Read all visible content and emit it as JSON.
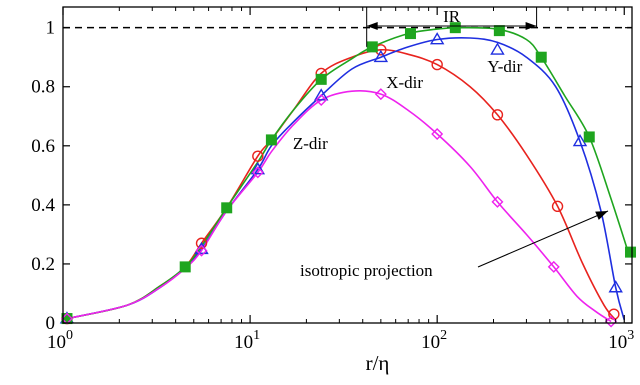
{
  "chart_data": {
    "type": "line",
    "title": "",
    "xlabel": "r/η",
    "ylabel": "",
    "xscale": "log",
    "xlim": [
      1,
      1100
    ],
    "ylim": [
      0,
      1.07
    ],
    "grid": false,
    "x_tick_labels": [
      {
        "value": 1,
        "base": "10",
        "exp": "0"
      },
      {
        "value": 10,
        "base": "10",
        "exp": "1"
      },
      {
        "value": 100,
        "base": "10",
        "exp": "2"
      },
      {
        "value": 1000,
        "base": "10",
        "exp": "3"
      }
    ],
    "y_ticks": [
      0,
      0.2,
      0.4,
      0.6,
      0.8,
      1
    ],
    "y_tick_labels": [
      "0",
      "0.2",
      "0.4",
      "0.6",
      "0.8",
      "1"
    ],
    "reference_line": {
      "y": 1,
      "style": "dashed",
      "color": "#000000"
    },
    "series": [
      {
        "color": "#e8231e",
        "marker": "circle",
        "curve": [
          [
            1.05,
            0.015
          ],
          [
            2.2,
            0.06
          ],
          [
            3.3,
            0.125
          ],
          [
            4.5,
            0.19
          ],
          [
            5.5,
            0.27
          ],
          [
            7.5,
            0.39
          ],
          [
            11,
            0.565
          ],
          [
            13,
            0.62
          ],
          [
            17,
            0.72
          ],
          [
            24,
            0.845
          ],
          [
            35,
            0.9
          ],
          [
            50,
            0.925
          ],
          [
            70,
            0.91
          ],
          [
            100,
            0.875
          ],
          [
            150,
            0.8
          ],
          [
            210,
            0.705
          ],
          [
            300,
            0.57
          ],
          [
            440,
            0.395
          ],
          [
            600,
            0.2
          ],
          [
            780,
            0.06
          ],
          [
            900,
            0.01
          ]
        ],
        "points": [
          [
            1.05,
            0.015
          ],
          [
            5.5,
            0.27
          ],
          [
            11,
            0.565
          ],
          [
            24,
            0.845
          ],
          [
            50,
            0.925
          ],
          [
            100,
            0.875
          ],
          [
            210,
            0.705
          ],
          [
            440,
            0.395
          ],
          [
            880,
            0.03
          ]
        ]
      },
      {
        "color": "#1f2fe0",
        "marker": "triangle",
        "curve": [
          [
            1.05,
            0.015
          ],
          [
            2.2,
            0.06
          ],
          [
            3.3,
            0.12
          ],
          [
            4.5,
            0.19
          ],
          [
            5.5,
            0.25
          ],
          [
            7.5,
            0.38
          ],
          [
            11,
            0.52
          ],
          [
            13,
            0.6
          ],
          [
            17,
            0.68
          ],
          [
            24,
            0.77
          ],
          [
            35,
            0.86
          ],
          [
            50,
            0.9
          ],
          [
            70,
            0.935
          ],
          [
            100,
            0.96
          ],
          [
            150,
            0.965
          ],
          [
            210,
            0.95
          ],
          [
            300,
            0.9
          ],
          [
            430,
            0.8
          ],
          [
            580,
            0.615
          ],
          [
            750,
            0.38
          ],
          [
            900,
            0.12
          ],
          [
            1000,
            0.01
          ]
        ],
        "points": [
          [
            1.05,
            0.015
          ],
          [
            5.5,
            0.25
          ],
          [
            11,
            0.52
          ],
          [
            24,
            0.77
          ],
          [
            50,
            0.9
          ],
          [
            100,
            0.96
          ],
          [
            210,
            0.925
          ],
          [
            580,
            0.615
          ],
          [
            900,
            0.12
          ]
        ]
      },
      {
        "color": "#1fa51f",
        "marker": "square",
        "curve": [
          [
            1.05,
            0.015
          ],
          [
            2.2,
            0.06
          ],
          [
            3.3,
            0.125
          ],
          [
            4.5,
            0.19
          ],
          [
            5.5,
            0.26
          ],
          [
            7.5,
            0.39
          ],
          [
            11,
            0.545
          ],
          [
            13,
            0.62
          ],
          [
            17,
            0.72
          ],
          [
            24,
            0.825
          ],
          [
            35,
            0.895
          ],
          [
            45,
            0.935
          ],
          [
            70,
            0.98
          ],
          [
            100,
            0.995
          ],
          [
            130,
            1.0
          ],
          [
            210,
            0.995
          ],
          [
            300,
            0.96
          ],
          [
            360,
            0.9
          ],
          [
            480,
            0.77
          ],
          [
            650,
            0.63
          ],
          [
            850,
            0.42
          ],
          [
            1050,
            0.24
          ]
        ],
        "points": [
          [
            1.05,
            0.015
          ],
          [
            4.5,
            0.19
          ],
          [
            7.5,
            0.39
          ],
          [
            13,
            0.62
          ],
          [
            24,
            0.825
          ],
          [
            45,
            0.935
          ],
          [
            72,
            0.98
          ],
          [
            125,
            1.0
          ],
          [
            215,
            0.99
          ],
          [
            360,
            0.9
          ],
          [
            650,
            0.63
          ],
          [
            1080,
            0.24
          ]
        ]
      },
      {
        "color": "#ee22ee",
        "marker": "diamond",
        "curve": [
          [
            1.05,
            0.015
          ],
          [
            2.2,
            0.06
          ],
          [
            3.3,
            0.12
          ],
          [
            4.5,
            0.185
          ],
          [
            5.5,
            0.245
          ],
          [
            7.5,
            0.38
          ],
          [
            11,
            0.51
          ],
          [
            13,
            0.58
          ],
          [
            17,
            0.67
          ],
          [
            24,
            0.755
          ],
          [
            35,
            0.785
          ],
          [
            50,
            0.775
          ],
          [
            70,
            0.72
          ],
          [
            100,
            0.64
          ],
          [
            150,
            0.53
          ],
          [
            210,
            0.41
          ],
          [
            300,
            0.3
          ],
          [
            420,
            0.19
          ],
          [
            560,
            0.09
          ],
          [
            700,
            0.04
          ],
          [
            850,
            0.005
          ]
        ],
        "points": [
          [
            1.05,
            0.015
          ],
          [
            5.5,
            0.245
          ],
          [
            11,
            0.51
          ],
          [
            24,
            0.755
          ],
          [
            50,
            0.775
          ],
          [
            100,
            0.64
          ],
          [
            210,
            0.41
          ],
          [
            420,
            0.19
          ],
          [
            850,
            0.005
          ]
        ]
      }
    ],
    "annotations": [
      {
        "text": "X-dir",
        "x": 67,
        "y": 0.795
      },
      {
        "text": "Y-dir",
        "x": 230,
        "y": 0.85
      },
      {
        "text": "Z-dir",
        "x": 21,
        "y": 0.59
      },
      {
        "text": "IR"
      },
      {
        "text": "isotropic projection"
      }
    ]
  }
}
